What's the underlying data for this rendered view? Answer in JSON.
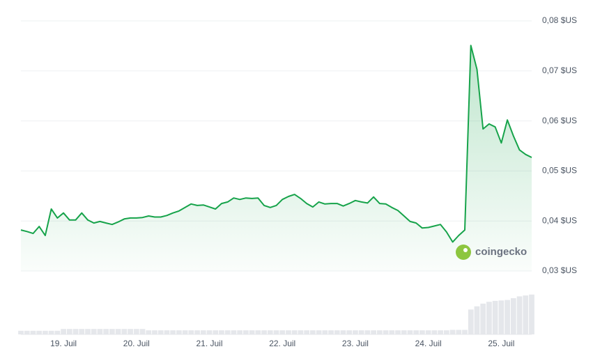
{
  "chart_data": {
    "type": "line",
    "categories": [
      null,
      null,
      null,
      null,
      null,
      null,
      null,
      "19. Juil",
      null,
      null,
      null,
      null,
      null,
      null,
      null,
      null,
      null,
      null,
      null,
      "20. Juil",
      null,
      null,
      null,
      null,
      null,
      null,
      null,
      null,
      null,
      null,
      null,
      "21. Juil",
      null,
      null,
      null,
      null,
      null,
      null,
      null,
      null,
      null,
      null,
      null,
      "22. Juil",
      null,
      null,
      null,
      null,
      null,
      null,
      null,
      null,
      null,
      null,
      null,
      "23. Juil",
      null,
      null,
      null,
      null,
      null,
      null,
      null,
      null,
      null,
      null,
      null,
      "24. Juil",
      null,
      null,
      null,
      null,
      null,
      null,
      null,
      null,
      null,
      null,
      null,
      "25. Juil",
      null,
      null,
      null,
      null,
      null
    ],
    "values": [
      0.0382,
      0.0379,
      0.0375,
      0.0389,
      0.0371,
      0.0424,
      0.0406,
      0.0416,
      0.0402,
      0.0402,
      0.0416,
      0.0402,
      0.0396,
      0.0399,
      0.0396,
      0.0393,
      0.0398,
      0.0404,
      0.0406,
      0.0406,
      0.0407,
      0.041,
      0.0408,
      0.0408,
      0.0411,
      0.0416,
      0.042,
      0.0427,
      0.0434,
      0.0431,
      0.0432,
      0.0428,
      0.0424,
      0.0435,
      0.0438,
      0.0446,
      0.0443,
      0.0446,
      0.0445,
      0.0446,
      0.0431,
      0.0427,
      0.0431,
      0.0443,
      0.0449,
      0.0453,
      0.0445,
      0.0435,
      0.0428,
      0.0438,
      0.0434,
      0.0435,
      0.0435,
      0.043,
      0.0435,
      0.0441,
      0.0438,
      0.0436,
      0.0448,
      0.0435,
      0.0434,
      0.0427,
      0.0421,
      0.041,
      0.0399,
      0.0396,
      0.0386,
      0.0387,
      0.039,
      0.0393,
      0.0378,
      0.0358,
      0.0371,
      0.0382,
      0.0751,
      0.0703,
      0.0584,
      0.0594,
      0.0588,
      0.0556,
      0.0602,
      0.057,
      0.0542,
      0.0533,
      0.0527
    ],
    "color": "#16a34a",
    "ylim": [
      0.03,
      0.08
    ],
    "yticks": [
      {
        "value": 0.03,
        "label": "0,03 $US"
      },
      {
        "value": 0.04,
        "label": "0,04 $US"
      },
      {
        "value": 0.05,
        "label": "0,05 $US"
      },
      {
        "value": 0.06,
        "label": "0,06 $US"
      },
      {
        "value": 0.07,
        "label": "0,07 $US"
      },
      {
        "value": 0.08,
        "label": "0,08 $US"
      }
    ],
    "grid": true,
    "volume": {
      "color": "#e5e7eb",
      "ylim": [
        0,
        100
      ],
      "values": [
        8,
        8,
        8,
        8,
        8,
        8,
        8,
        12,
        12,
        12,
        12,
        12,
        12,
        12,
        12,
        12,
        12,
        12,
        12,
        12,
        12,
        9,
        9,
        9,
        9,
        9,
        9,
        9,
        9,
        9,
        9,
        9,
        9,
        9,
        9,
        9,
        9,
        9,
        9,
        9,
        9,
        9,
        9,
        9,
        9,
        9,
        9,
        9,
        9,
        9,
        9,
        9,
        9,
        9,
        9,
        9,
        9,
        9,
        9,
        9,
        9,
        9,
        9,
        9,
        9,
        9,
        9,
        9,
        9,
        9,
        9,
        10,
        10,
        10,
        55,
        62,
        68,
        72,
        74,
        75,
        76,
        80,
        84,
        86,
        88
      ]
    },
    "watermark": "coingecko"
  }
}
